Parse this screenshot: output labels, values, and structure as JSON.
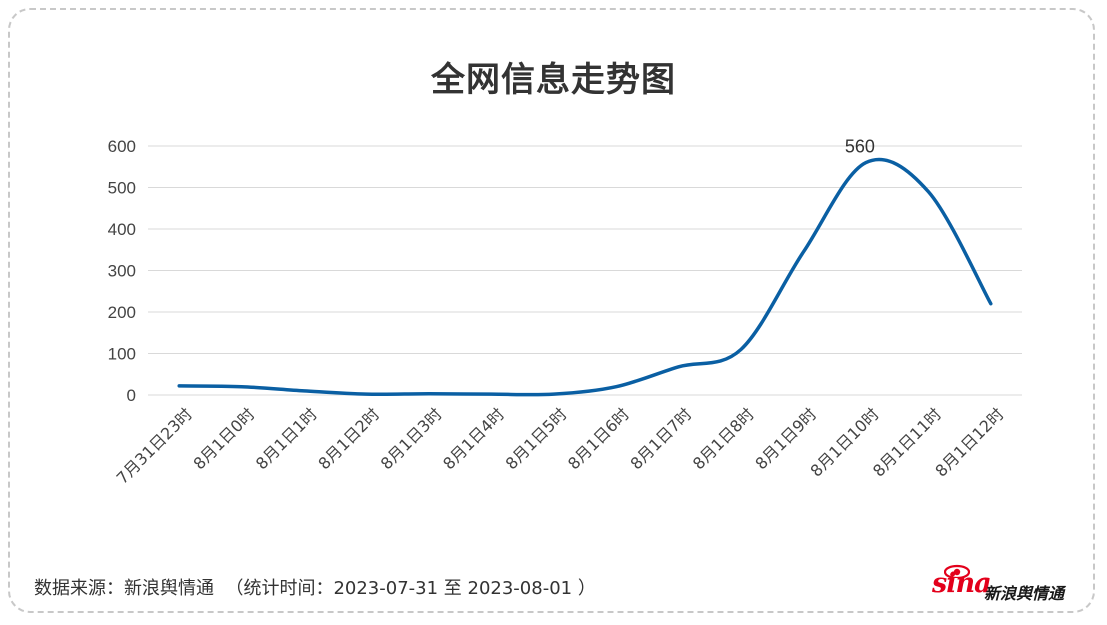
{
  "chart_data": {
    "type": "line",
    "title": "全网信息走势图",
    "categories": [
      "7月31日23时",
      "8月1日0时",
      "8月1日1时",
      "8月1日2时",
      "8月1日3时",
      "8月1日4时",
      "8月1日5时",
      "8月1日6时",
      "8月1日7时",
      "8月1日8时",
      "8月1日9时",
      "8月1日10时",
      "8月1日11时",
      "8月1日12时"
    ],
    "series": [
      {
        "values": [
          22,
          20,
          10,
          2,
          3,
          2,
          2,
          20,
          68,
          110,
          345,
          560,
          490,
          220
        ],
        "color": "#0a5fa3"
      }
    ],
    "ylim": [
      0,
      600
    ],
    "yticks": [
      0,
      100,
      200,
      300,
      400,
      500,
      600
    ],
    "grid": true,
    "annotations": [
      {
        "category": "8月1日10时",
        "text": "560"
      }
    ]
  },
  "footer": {
    "source": "数据来源：新浪舆情通  （统计时间：2023-07-31 至 2023-08-01 ）"
  },
  "logo": {
    "brand": "sina",
    "name": "新浪舆情通"
  },
  "colors": {
    "line": "#0a5fa3",
    "grid": "#d9d9d9",
    "text": "#333333",
    "brand": "#e3001b"
  }
}
